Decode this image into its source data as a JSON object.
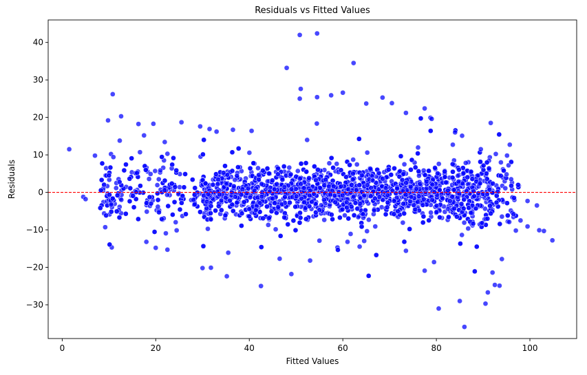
{
  "chart_data": {
    "type": "scatter",
    "title": "Residuals vs Fitted Values",
    "xlabel": "Fitted Values",
    "ylabel": "Residuals",
    "xlim": [
      -3,
      110
    ],
    "ylim": [
      -39,
      46
    ],
    "xticks": [
      0,
      20,
      40,
      60,
      80,
      100
    ],
    "yticks": [
      -30,
      -20,
      -10,
      0,
      10,
      20,
      30,
      40
    ],
    "grid": false,
    "legend": "none",
    "point_color": "#0000ff",
    "point_edge_color": "#ffffff",
    "reference_line": {
      "y": 0,
      "color": "#ff0000",
      "style": "dashed"
    },
    "points_note_outliers": [
      [
        1.5,
        11.5
      ],
      [
        4.5,
        -1.2
      ],
      [
        5.0,
        -1.8
      ],
      [
        7.0,
        9.8
      ],
      [
        9.8,
        19.2
      ],
      [
        10.8,
        26.2
      ],
      [
        12.6,
        20.3
      ],
      [
        12.3,
        13.8
      ],
      [
        17.5,
        15.2
      ],
      [
        19.5,
        18.3
      ],
      [
        22.5,
        10.3
      ],
      [
        25.5,
        18.7
      ],
      [
        29.5,
        17.6
      ],
      [
        31.5,
        16.9
      ],
      [
        33.0,
        16.2
      ],
      [
        36.5,
        16.7
      ],
      [
        40.5,
        16.4
      ],
      [
        30.0,
        -20.2
      ],
      [
        31.8,
        -20.1
      ],
      [
        22.5,
        -15.3
      ],
      [
        18.0,
        -13.2
      ],
      [
        20.0,
        -14.8
      ],
      [
        35.5,
        -16.1
      ],
      [
        42.5,
        -25.0
      ],
      [
        46.5,
        -17.7
      ],
      [
        49.0,
        -21.8
      ],
      [
        53.0,
        -18.2
      ],
      [
        48.0,
        33.2
      ],
      [
        50.8,
        42.0
      ],
      [
        54.5,
        42.4
      ],
      [
        51.0,
        27.6
      ],
      [
        50.8,
        25.0
      ],
      [
        54.5,
        25.4
      ],
      [
        57.5,
        25.9
      ],
      [
        60.0,
        26.6
      ],
      [
        62.3,
        34.5
      ],
      [
        65.0,
        23.7
      ],
      [
        68.5,
        25.3
      ],
      [
        70.5,
        23.8
      ],
      [
        73.5,
        21.2
      ],
      [
        77.5,
        22.4
      ],
      [
        79.0,
        19.6
      ],
      [
        84.0,
        16.0
      ],
      [
        85.5,
        15.1
      ],
      [
        89.5,
        11.5
      ],
      [
        55.0,
        -12.9
      ],
      [
        61.0,
        -13.2
      ],
      [
        73.5,
        -15.6
      ],
      [
        77.5,
        -20.9
      ],
      [
        79.5,
        -18.6
      ],
      [
        80.5,
        -31.0
      ],
      [
        85.0,
        -29.0
      ],
      [
        86.0,
        -35.9
      ],
      [
        90.5,
        -29.7
      ],
      [
        91.0,
        -26.7
      ],
      [
        92.0,
        -21.4
      ],
      [
        93.5,
        -24.9
      ],
      [
        94.0,
        -17.8
      ],
      [
        92.5,
        -24.7
      ],
      [
        97.0,
        -10.2
      ],
      [
        99.5,
        -9.1
      ],
      [
        102.0,
        -10.1
      ],
      [
        103.0,
        -10.3
      ],
      [
        104.8,
        -12.8
      ],
      [
        101.5,
        -3.5
      ],
      [
        99.5,
        -2.3
      ],
      [
        97.5,
        2.0
      ],
      [
        95.0,
        4.8
      ],
      [
        96.0,
        3.5
      ],
      [
        93.8,
        8.0
      ],
      [
        98.0,
        -7.5
      ],
      [
        96.5,
        -5.8
      ]
    ]
  }
}
